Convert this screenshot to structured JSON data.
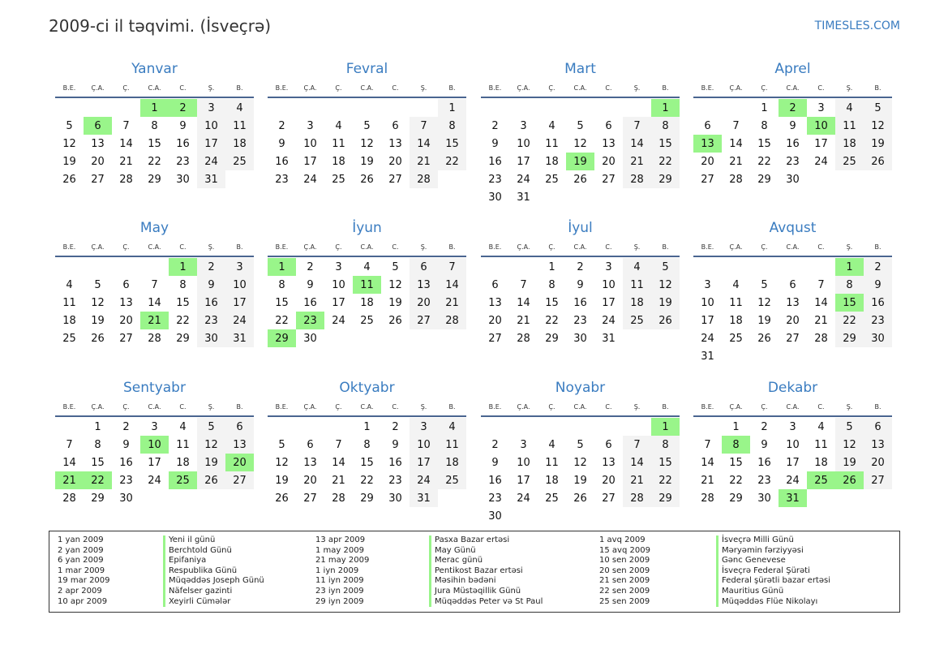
{
  "header": {
    "title": "2009-ci il təqvimi. (İsveçrə)",
    "site": "TIMESLES.COM"
  },
  "year": 2009,
  "weekdays": [
    "B.E.",
    "Ç.A.",
    "Ç.",
    "C.A.",
    "C.",
    "Ş.",
    "B."
  ],
  "colors": {
    "holiday": "#99f58a",
    "weekend": "#f3f3f3",
    "accent": "#3a7cc0"
  },
  "months": [
    {
      "name": "Yanvar",
      "holidays": [
        1,
        2,
        6
      ]
    },
    {
      "name": "Fevral",
      "holidays": []
    },
    {
      "name": "Mart",
      "holidays": [
        1,
        19
      ]
    },
    {
      "name": "Aprel",
      "holidays": [
        2,
        10,
        13
      ]
    },
    {
      "name": "May",
      "holidays": [
        1,
        21
      ]
    },
    {
      "name": "İyun",
      "holidays": [
        1,
        11,
        23,
        29
      ]
    },
    {
      "name": "İyul",
      "holidays": []
    },
    {
      "name": "Avqust",
      "holidays": [
        1,
        15
      ]
    },
    {
      "name": "Sentyabr",
      "holidays": [
        10,
        20,
        21,
        22,
        25
      ]
    },
    {
      "name": "Oktyabr",
      "holidays": []
    },
    {
      "name": "Noyabr",
      "holidays": [
        1
      ]
    },
    {
      "name": "Dekabr",
      "holidays": [
        8,
        25,
        26,
        31
      ]
    }
  ],
  "legend": [
    [
      {
        "date": "1 yan 2009",
        "name": "Yeni il günü"
      },
      {
        "date": "2 yan 2009",
        "name": "Berchtold Günü"
      },
      {
        "date": "6 yan 2009",
        "name": "Epifaniya"
      },
      {
        "date": "1 mar 2009",
        "name": "Respublika Günü"
      },
      {
        "date": "19 mar 2009",
        "name": "Müqəddəs Joseph Günü"
      },
      {
        "date": "2 apr 2009",
        "name": "Näfelser gazinti"
      },
      {
        "date": "10 apr 2009",
        "name": "Xeyirli Cümələr"
      }
    ],
    [
      {
        "date": "13 apr 2009",
        "name": "Pasxa Bazar ertəsi"
      },
      {
        "date": "1 may 2009",
        "name": "May Günü"
      },
      {
        "date": "21 may 2009",
        "name": "Merac günü"
      },
      {
        "date": "1 iyn 2009",
        "name": "Pentikost Bazar ertəsi"
      },
      {
        "date": "11 iyn 2009",
        "name": "Məsihin bədəni"
      },
      {
        "date": "23 iyn 2009",
        "name": "Jura Müstəqillik Günü"
      },
      {
        "date": "29 iyn 2009",
        "name": "Müqəddəs Peter və St Paul"
      }
    ],
    [
      {
        "date": "1 avq 2009",
        "name": "İsveçrə Milli Günü"
      },
      {
        "date": "15 avq 2009",
        "name": "Məryəmin fərziyyəsi"
      },
      {
        "date": "10 sen 2009",
        "name": "Gənc Genevese"
      },
      {
        "date": "20 sen 2009",
        "name": "İsveçrə Federal Şürəti"
      },
      {
        "date": "21 sen 2009",
        "name": "Federal şürətli bazar ertəsi"
      },
      {
        "date": "22 sen 2009",
        "name": "Mauritius Günü"
      },
      {
        "date": "25 sen 2009",
        "name": "Müqəddəs Flüe Nikolayı"
      }
    ]
  ]
}
